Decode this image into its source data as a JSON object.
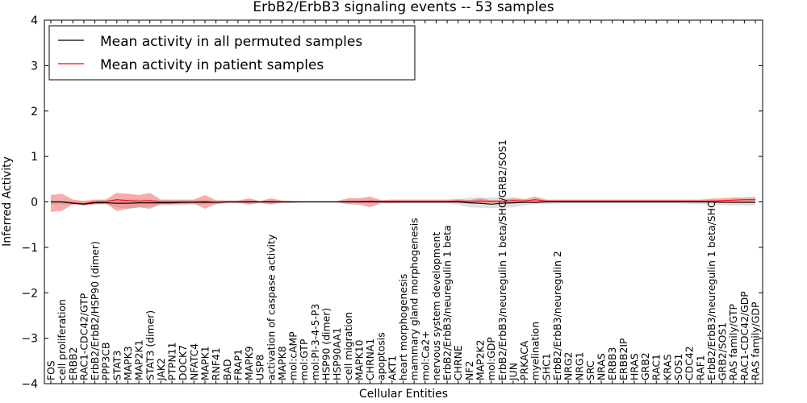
{
  "chart_data": {
    "type": "line",
    "title": "ErbB2/ErbB3 signaling events -- 53 samples",
    "xlabel": "Cellular Entities",
    "ylabel": "Inferred Activity",
    "ylim": [
      -4,
      4
    ],
    "yticks": [
      4,
      3,
      2,
      1,
      0,
      -1,
      -2,
      -3,
      -4
    ],
    "yticks_text": [
      "4",
      "3",
      "2",
      "1",
      "0",
      "−1",
      "−2",
      "−3",
      "−4"
    ],
    "grid": false,
    "legend_position": "top-left",
    "categories": [
      "FOS",
      "cell proliferation",
      "ERBB2",
      "RAC1-CDC42/GTP",
      "ErbB2/ErbB2/HSP90 (dimer)",
      "PPP3CB",
      "STAT3",
      "MAPK3",
      "MAP2K1",
      "STAT3 (dimer)",
      "JAK2",
      "PTPN11",
      "DOCK7",
      "NFATC4",
      "MAPK1",
      "RNF41",
      "BAD",
      "FRAP1",
      "MAPK9",
      "USP8",
      "activation of caspase activity",
      "MAPK8",
      "mol:cAMP",
      "mol:GTP",
      "mol:PI-3-4-5-P3",
      "HSP90 (dimer)",
      "HSP90AA1",
      "cell migration",
      "MAPK10",
      "CHRNA1",
      "apoptosis",
      "AKT1",
      "heart morphogenesis",
      "mammary gland morphogenesis",
      "mol:Ca2+",
      "nervous system development",
      "ErbB2/ErbB3/neuregulin 1 beta",
      "CHRNE",
      "NF2",
      "MAP2K2",
      "mol:GDP",
      "ErbB2/ErbB3/neuregulin 1 beta/SHC/GRB2/SOS1",
      "JUN",
      "PRKACA",
      "myelination",
      "SHC1",
      "ErbB2/ErbB3/neuregulin 2",
      "NRG2",
      "NRG1",
      "SRC",
      "NRAS",
      "ERBB3",
      "ERBB2IP",
      "HRAS",
      "GRB2",
      "RAC1",
      "KRAS",
      "SOS1",
      "CDC42",
      "RAF1",
      "ErbB2/ErbB3/neuregulin 1 beta/SHC",
      "GRB2/SOS1",
      "RAS family/GTP",
      "RAC1-CDC42/GDP",
      "RAS family/GDP"
    ],
    "series": [
      {
        "name": "Mean activity in all permuted samples",
        "color": "#000000",
        "values": [
          0.0,
          0.0,
          -0.03,
          -0.05,
          -0.02,
          -0.02,
          -0.03,
          -0.03,
          -0.02,
          -0.02,
          -0.02,
          -0.02,
          -0.01,
          -0.01,
          -0.01,
          -0.01,
          0.0,
          0.0,
          0.0,
          0.0,
          0.0,
          0.0,
          0.0,
          0.0,
          0.0,
          0.0,
          0.0,
          0.0,
          0.0,
          0.0,
          0.0,
          0.0,
          0.0,
          0.0,
          0.0,
          0.0,
          0.0,
          0.0,
          -0.02,
          -0.03,
          -0.05,
          -0.03,
          -0.02,
          -0.01,
          -0.01,
          0.0,
          0.0,
          0.0,
          0.0,
          0.0,
          0.0,
          0.0,
          0.0,
          0.0,
          0.0,
          0.0,
          0.0,
          0.0,
          0.0,
          0.0,
          0.0,
          -0.01,
          -0.01,
          -0.01,
          -0.01
        ],
        "band_upper": [
          0.02,
          0.02,
          0.02,
          0.02,
          0.03,
          0.03,
          0.05,
          0.05,
          0.05,
          0.05,
          0.04,
          0.04,
          0.04,
          0.04,
          0.03,
          0.03,
          0.02,
          0.02,
          0.02,
          0.02,
          0.02,
          0.02,
          0.02,
          0.01,
          0.01,
          0.01,
          0.01,
          0.01,
          0.01,
          0.01,
          0.01,
          0.01,
          0.02,
          0.02,
          0.02,
          0.02,
          0.02,
          0.05,
          0.1,
          0.1,
          0.1,
          0.1,
          0.1,
          0.06,
          0.04,
          0.03,
          0.02,
          0.02,
          0.02,
          0.02,
          0.02,
          0.02,
          0.02,
          0.02,
          0.02,
          0.02,
          0.02,
          0.02,
          0.02,
          0.03,
          0.03,
          0.03,
          0.04,
          0.04,
          0.04
        ],
        "band_lower": [
          -0.05,
          -0.05,
          -0.06,
          -0.08,
          -0.06,
          -0.06,
          -0.12,
          -0.15,
          -0.12,
          -0.1,
          -0.08,
          -0.08,
          -0.07,
          -0.06,
          -0.05,
          -0.04,
          -0.03,
          -0.03,
          -0.03,
          -0.03,
          -0.03,
          -0.02,
          -0.02,
          -0.01,
          -0.01,
          -0.01,
          -0.01,
          -0.01,
          -0.01,
          -0.01,
          -0.01,
          -0.02,
          -0.03,
          -0.03,
          -0.03,
          -0.03,
          -0.03,
          -0.06,
          -0.12,
          -0.13,
          -0.14,
          -0.13,
          -0.12,
          -0.08,
          -0.05,
          -0.04,
          -0.03,
          -0.03,
          -0.03,
          -0.03,
          -0.03,
          -0.03,
          -0.03,
          -0.03,
          -0.03,
          -0.03,
          -0.03,
          -0.03,
          -0.04,
          -0.05,
          -0.06,
          -0.07,
          -0.08,
          -0.08,
          -0.08
        ]
      },
      {
        "name": "Mean activity in patient samples",
        "color": "#ff0000",
        "values": [
          0.0,
          0.0,
          -0.02,
          -0.04,
          0.0,
          0.01,
          0.05,
          0.03,
          0.02,
          0.03,
          0.0,
          0.0,
          0.0,
          0.0,
          0.01,
          -0.01,
          0.0,
          0.0,
          0.01,
          0.0,
          0.01,
          0.0,
          0.0,
          0.0,
          0.0,
          0.0,
          0.0,
          0.01,
          0.01,
          0.02,
          0.01,
          0.01,
          0.01,
          0.01,
          0.01,
          0.01,
          0.01,
          0.02,
          0.01,
          0.02,
          0.01,
          0.01,
          0.03,
          0.02,
          0.05,
          0.02,
          0.02,
          0.02,
          0.02,
          0.02,
          0.02,
          0.02,
          0.02,
          0.02,
          0.02,
          0.02,
          0.02,
          0.02,
          0.02,
          0.02,
          0.02,
          0.03,
          0.04,
          0.05,
          0.05
        ],
        "band_upper": [
          0.15,
          0.18,
          0.05,
          0.02,
          0.05,
          0.05,
          0.2,
          0.18,
          0.15,
          0.2,
          0.05,
          0.05,
          0.05,
          0.05,
          0.15,
          0.04,
          0.03,
          0.03,
          0.08,
          0.02,
          0.08,
          0.03,
          0.02,
          0.02,
          0.02,
          0.02,
          0.02,
          0.08,
          0.08,
          0.12,
          0.04,
          0.05,
          0.05,
          0.05,
          0.05,
          0.05,
          0.05,
          0.06,
          0.04,
          0.08,
          0.04,
          0.04,
          0.08,
          0.06,
          0.12,
          0.05,
          0.05,
          0.05,
          0.05,
          0.05,
          0.05,
          0.05,
          0.05,
          0.05,
          0.05,
          0.05,
          0.05,
          0.05,
          0.05,
          0.05,
          0.07,
          0.08,
          0.1,
          0.1,
          0.11
        ],
        "band_lower": [
          -0.22,
          -0.2,
          -0.05,
          -0.07,
          -0.05,
          -0.03,
          -0.2,
          -0.15,
          -0.12,
          -0.15,
          -0.05,
          -0.05,
          -0.05,
          -0.04,
          -0.15,
          -0.05,
          -0.02,
          -0.02,
          -0.06,
          -0.02,
          -0.06,
          -0.02,
          -0.02,
          -0.01,
          -0.01,
          -0.01,
          -0.01,
          -0.05,
          -0.06,
          -0.12,
          -0.03,
          -0.03,
          -0.02,
          -0.02,
          -0.02,
          -0.02,
          -0.02,
          -0.02,
          -0.02,
          -0.04,
          -0.02,
          -0.02,
          -0.03,
          -0.02,
          -0.03,
          -0.01,
          -0.01,
          -0.01,
          -0.01,
          -0.01,
          -0.01,
          -0.01,
          -0.01,
          -0.01,
          -0.01,
          -0.01,
          -0.01,
          -0.01,
          -0.01,
          -0.01,
          -0.02,
          -0.02,
          -0.02,
          -0.02,
          -0.02
        ]
      }
    ]
  }
}
